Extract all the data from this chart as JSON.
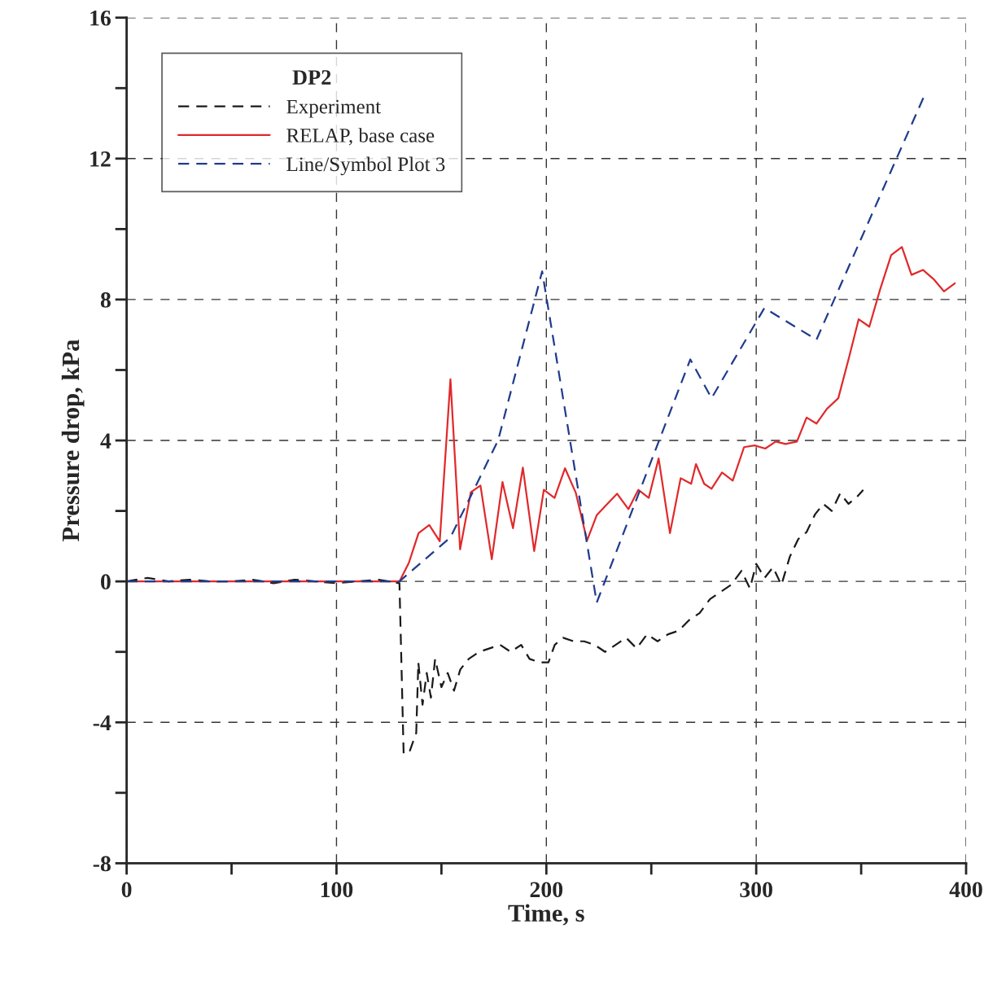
{
  "chart_data": {
    "type": "line",
    "xlabel": "Time, s",
    "ylabel": "Pressure drop, kPa",
    "legend_title": "DP2",
    "xlim": [
      0,
      400
    ],
    "ylim": [
      -8,
      16
    ],
    "xticks": [
      0,
      {
        "value": 50,
        "label": null
      },
      100,
      {
        "value": 150,
        "label": null
      },
      200,
      {
        "value": 250,
        "label": null
      },
      300,
      {
        "value": 350,
        "label": null
      },
      400
    ],
    "yticks": [
      -8,
      {
        "value": -6,
        "label": null
      },
      -4,
      {
        "value": -2,
        "label": null
      },
      0,
      {
        "value": 2,
        "label": null
      },
      4,
      {
        "value": 6,
        "label": null
      },
      8,
      {
        "value": 10,
        "label": null
      },
      12,
      {
        "value": 14,
        "label": null
      },
      16
    ],
    "grid": true,
    "legend": "top left",
    "series": [
      {
        "name": "Experiment",
        "color": "#1a1a1a",
        "line_style": "dashed",
        "x": [
          0,
          10,
          20,
          30,
          40,
          50,
          60,
          70,
          80,
          90,
          100,
          110,
          120,
          130,
          132,
          135,
          138,
          139,
          141,
          143,
          145,
          147,
          150,
          153,
          156,
          159,
          163,
          168,
          173,
          178,
          183,
          188,
          192,
          197,
          201,
          204,
          208,
          213,
          218,
          223,
          228,
          233,
          238,
          243,
          248,
          253,
          258,
          263,
          268,
          273,
          278,
          283,
          288,
          293,
          297,
          300,
          304,
          308,
          312,
          316,
          320,
          324,
          328,
          332,
          336,
          340,
          344,
          348,
          351
        ],
        "values": [
          0,
          0.1,
          0,
          0.05,
          0,
          0,
          0.05,
          -0.05,
          0.05,
          0,
          -0.05,
          0,
          0.05,
          -0.05,
          -4.9,
          -4.8,
          -4.3,
          -2.3,
          -3.5,
          -2.6,
          -3.3,
          -2.2,
          -3.0,
          -2.6,
          -3.1,
          -2.5,
          -2.2,
          -2.0,
          -1.9,
          -1.8,
          -2.0,
          -1.8,
          -2.2,
          -2.3,
          -2.3,
          -1.8,
          -1.6,
          -1.7,
          -1.7,
          -1.8,
          -2.0,
          -1.8,
          -1.6,
          -1.9,
          -1.5,
          -1.7,
          -1.5,
          -1.4,
          -1.1,
          -0.9,
          -0.5,
          -0.3,
          -0.1,
          0.3,
          -0.2,
          0.5,
          0.1,
          0.4,
          -0.1,
          0.7,
          1.2,
          1.4,
          1.9,
          2.2,
          2.0,
          2.5,
          2.2,
          2.4,
          2.6
        ]
      },
      {
        "name": "RELAP, base case",
        "color": "#e0292b",
        "line_style": "solid",
        "x": [
          0,
          130,
          134.5,
          139.1,
          144.2,
          149.2,
          154.3,
          158.9,
          164,
          168.6,
          174,
          179.1,
          184.1,
          188.8,
          194.2,
          198.8,
          203.9,
          208.9,
          214,
          219.4,
          224,
          229.5,
          233.7,
          239.1,
          243.8,
          248.8,
          253.5,
          258.9,
          264,
          269,
          271.3,
          275.2,
          278.7,
          283.7,
          288.8,
          294.2,
          299.2,
          304.3,
          309.3,
          314,
          319.4,
          324,
          328.7,
          333.7,
          339.1,
          344.2,
          348.8,
          353.9,
          358.9,
          364.3,
          369.4,
          374,
          379.5,
          384.5,
          389.5,
          394.6
        ],
        "values": [
          0,
          0,
          0.53,
          1.37,
          1.6,
          1.14,
          5.74,
          0.91,
          2.53,
          2.72,
          0.63,
          2.82,
          1.51,
          3.23,
          0.86,
          2.6,
          2.37,
          3.21,
          2.52,
          1.16,
          1.88,
          2.23,
          2.49,
          2.05,
          2.6,
          2.37,
          3.49,
          1.37,
          2.93,
          2.77,
          3.33,
          2.77,
          2.63,
          3.09,
          2.86,
          3.81,
          3.86,
          3.77,
          3.97,
          3.9,
          3.97,
          4.65,
          4.48,
          4.9,
          5.2,
          6.35,
          7.44,
          7.23,
          8.26,
          9.26,
          9.49,
          8.7,
          8.84,
          8.58,
          8.23,
          8.46
        ]
      },
      {
        "name": "Line/Symbol Plot 3",
        "color": "#1f3b8c",
        "line_style": "dashed",
        "x": [
          0,
          130,
          154.3,
          177,
          198,
          224,
          268.6,
          278.7,
          303.9,
          328.7,
          380.2
        ],
        "values": [
          0,
          0,
          1.25,
          4.0,
          8.8,
          -0.6,
          6.3,
          5.2,
          7.76,
          6.86,
          13.8
        ]
      }
    ]
  }
}
